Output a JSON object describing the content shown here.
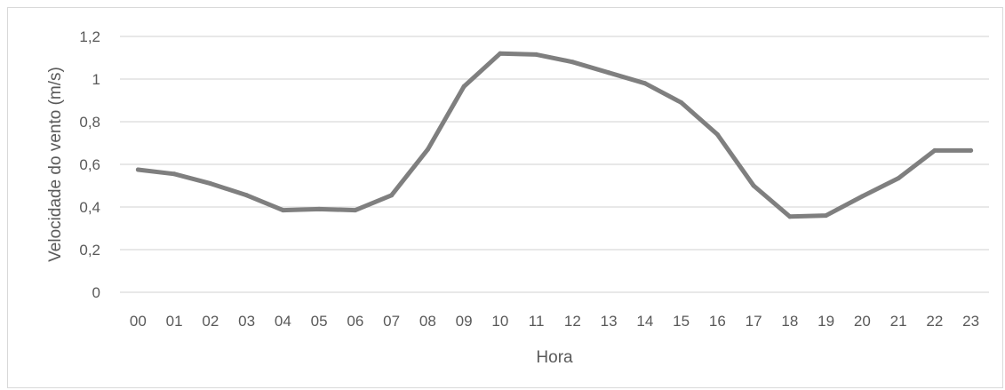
{
  "chart_data": {
    "type": "line",
    "title": "",
    "xlabel": "Hora",
    "ylabel": "Velocidade do vento (m/s)",
    "categories": [
      "00",
      "01",
      "02",
      "03",
      "04",
      "05",
      "06",
      "07",
      "08",
      "09",
      "10",
      "11",
      "12",
      "13",
      "14",
      "15",
      "16",
      "17",
      "18",
      "19",
      "20",
      "21",
      "22",
      "23"
    ],
    "series": [
      {
        "values": [
          0.575,
          0.555,
          0.51,
          0.455,
          0.385,
          0.39,
          0.385,
          0.455,
          0.67,
          0.965,
          1.12,
          1.115,
          1.08,
          1.03,
          0.98,
          0.89,
          0.74,
          0.5,
          0.355,
          0.36,
          0.45,
          0.535,
          0.665,
          0.665
        ],
        "color": "#7f7f7f"
      }
    ],
    "ylim": [
      0,
      1.2
    ],
    "yticks": [
      "0",
      "0,2",
      "0,4",
      "0,6",
      "0,8",
      "1",
      "1,2"
    ],
    "ytick_values": [
      0,
      0.2,
      0.4,
      0.6,
      0.8,
      1,
      1.2
    ],
    "grid": true,
    "gridline_color": "#d9d9d9",
    "legend": "none"
  }
}
